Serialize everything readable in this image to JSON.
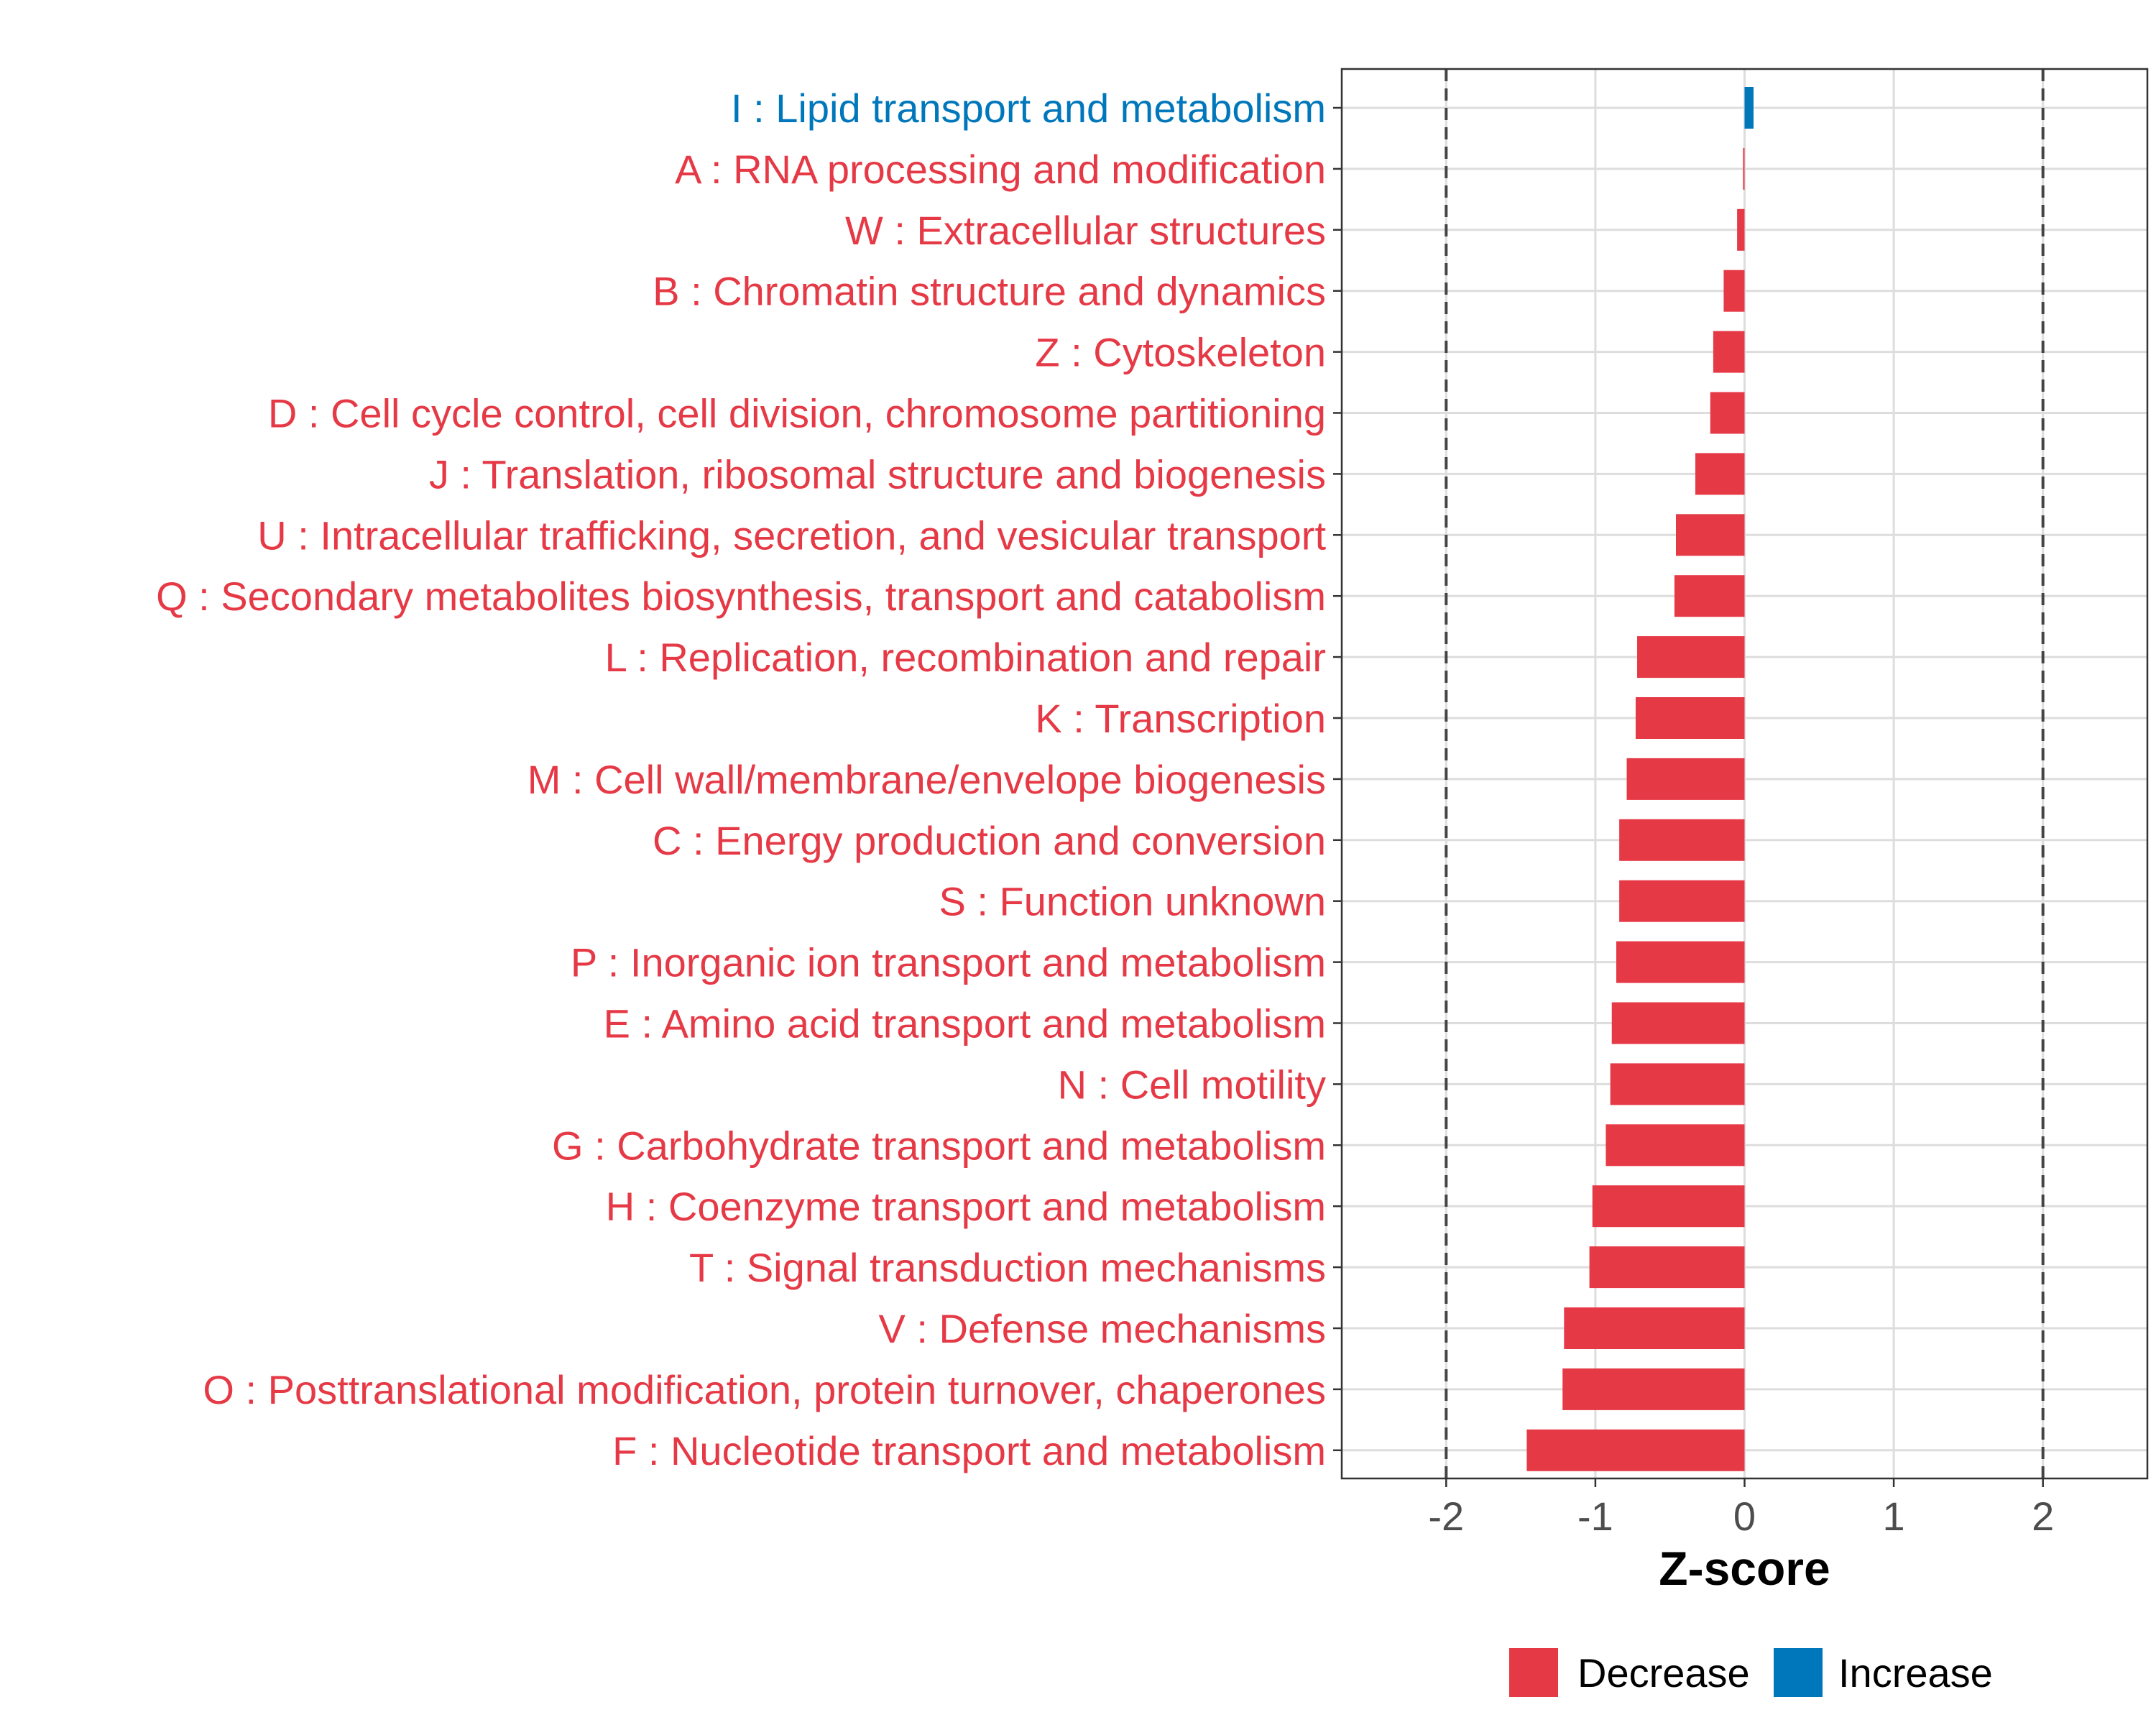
{
  "chart_data": {
    "type": "bar",
    "orientation": "horizontal",
    "xlabel": "Z-score",
    "xlim": [
      -2.7,
      2.7
    ],
    "x_ticks": [
      -2,
      -1,
      0,
      1,
      2
    ],
    "x_tick_labels": [
      "-2",
      "-1",
      "0",
      "1",
      "2"
    ],
    "reference_lines": [
      -2,
      2
    ],
    "grid": true,
    "legend_position": "bottom",
    "colors": {
      "Decrease": "#E63946",
      "Increase": "#0077BB"
    },
    "legend": [
      {
        "label": "Decrease",
        "color": "#E63946"
      },
      {
        "label": "Increase",
        "color": "#0077BB"
      }
    ],
    "categories": [
      "I : Lipid transport and metabolism",
      "A : RNA processing and modification",
      "W : Extracellular structures",
      "B : Chromatin structure and dynamics",
      "Z : Cytoskeleton",
      "D : Cell cycle control, cell division, chromosome partitioning",
      "J : Translation, ribosomal structure and biogenesis",
      "U : Intracellular trafficking, secretion, and vesicular transport",
      "Q : Secondary metabolites biosynthesis, transport and catabolism",
      "L : Replication, recombination and repair",
      "K : Transcription",
      "M : Cell wall/membrane/envelope biogenesis",
      "C : Energy production and conversion",
      "S : Function unknown",
      "P : Inorganic ion transport and metabolism",
      "E : Amino acid transport and metabolism",
      "N : Cell motility",
      "G : Carbohydrate transport and metabolism",
      "H : Coenzyme transport and metabolism",
      "T : Signal transduction mechanisms",
      "V : Defense mechanisms",
      "O : Posttranslational modification, protein turnover, chaperones",
      "F : Nucleotide transport and metabolism"
    ],
    "values": [
      0.06,
      -0.01,
      -0.05,
      -0.14,
      -0.21,
      -0.23,
      -0.33,
      -0.46,
      -0.47,
      -0.72,
      -0.73,
      -0.79,
      -0.84,
      -0.84,
      -0.86,
      -0.89,
      -0.9,
      -0.93,
      -1.02,
      -1.04,
      -1.21,
      -1.22,
      -1.46
    ],
    "groups": [
      "Increase",
      "Decrease",
      "Decrease",
      "Decrease",
      "Decrease",
      "Decrease",
      "Decrease",
      "Decrease",
      "Decrease",
      "Decrease",
      "Decrease",
      "Decrease",
      "Decrease",
      "Decrease",
      "Decrease",
      "Decrease",
      "Decrease",
      "Decrease",
      "Decrease",
      "Decrease",
      "Decrease",
      "Decrease",
      "Decrease"
    ]
  }
}
